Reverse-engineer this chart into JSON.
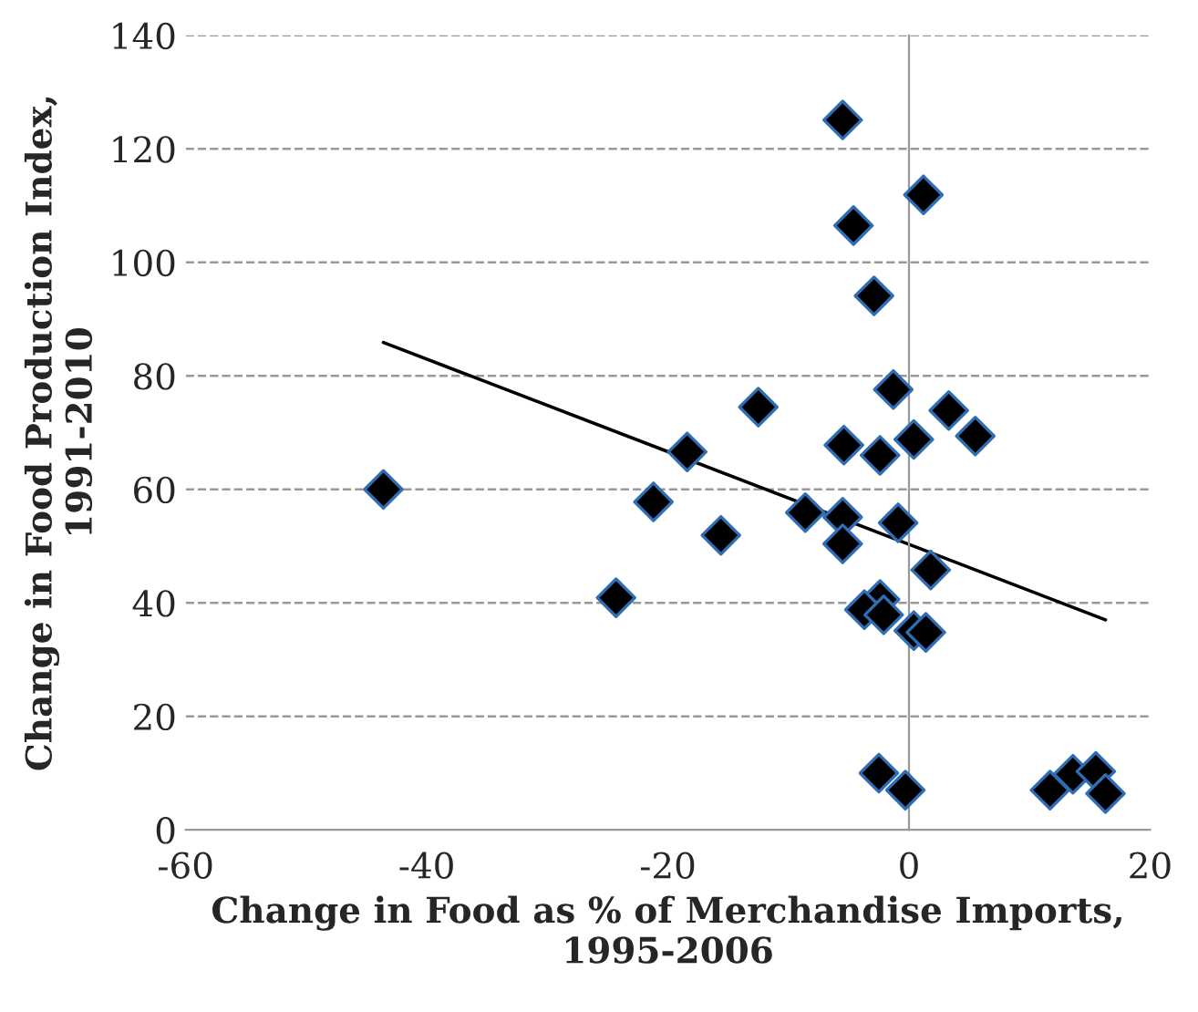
{
  "chart_data": {
    "type": "scatter",
    "xlabel": "Change in Food as % of Merchandise Imports, 1995-2006",
    "ylabel": "Change in Food Production Index, 1991-2010",
    "xlim": [
      -60,
      20
    ],
    "xticks": [
      -60,
      -40,
      -20,
      0,
      20
    ],
    "ylim": [
      0,
      140
    ],
    "yticks": [
      0,
      20,
      40,
      60,
      80,
      100,
      120,
      140
    ],
    "grid": "y",
    "series": [
      {
        "marker": "diamond",
        "color": "#000000",
        "x": [
          -43.6,
          -24.3,
          -21.2,
          -18.4,
          -15.6,
          -12.5,
          -8.6,
          -5.5,
          -5.4,
          -5.5,
          -5.5,
          -4.6,
          -2.9,
          -1.3,
          -2.4,
          0.4,
          -0.9,
          1.8,
          -2.4,
          -3.7,
          -2.1,
          0.4,
          1.4,
          1.2,
          3.3,
          5.5,
          -2.5,
          -0.3,
          11.7,
          13.6,
          15.5,
          16.3
        ],
        "values": [
          60.0,
          40.9,
          57.8,
          66.6,
          51.9,
          74.5,
          55.9,
          125.1,
          67.8,
          55.1,
          50.4,
          106.5,
          94.1,
          77.6,
          66.0,
          68.8,
          54.1,
          45.8,
          40.6,
          38.8,
          37.9,
          35.1,
          34.8,
          111.9,
          73.9,
          69.4,
          10.0,
          7.0,
          7.0,
          9.8,
          10.3,
          6.4
        ]
      },
      {
        "type": "line",
        "color": "#000000",
        "x": [
          -43.6,
          16.3
        ],
        "values": [
          85.9,
          37.0
        ]
      }
    ]
  }
}
